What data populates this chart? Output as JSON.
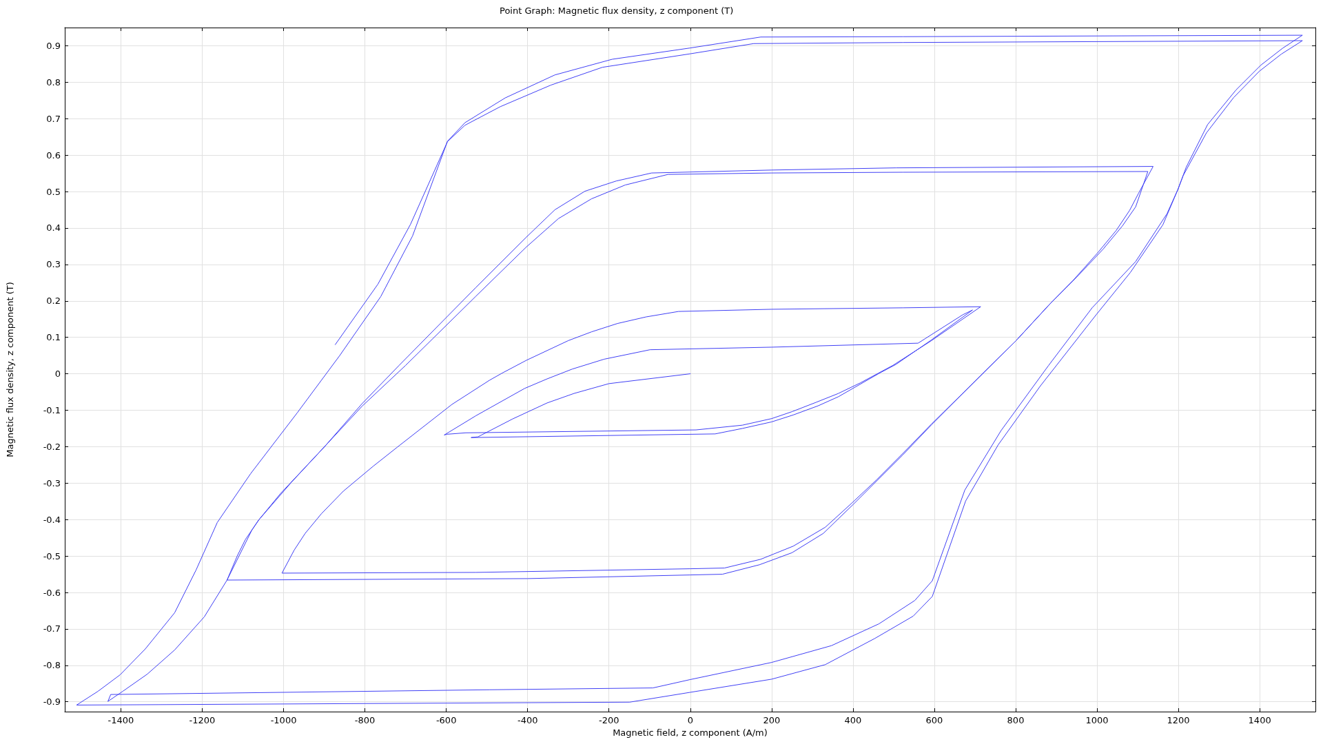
{
  "chart_data": {
    "type": "line",
    "title": "Point Graph: Magnetic flux density, z component (T)",
    "xlabel": "Magnetic field, z component (A/m)",
    "ylabel": "Magnetic flux density, z component (T)",
    "series": [
      {
        "color": "#3f3ff5",
        "x": [
          0,
          -200,
          -286,
          -352,
          -437,
          -522,
          -539,
          61,
          128,
          200,
          253,
          314,
          364,
          464,
          506,
          593,
          694,
          670,
          560,
          200,
          -99,
          -212,
          -290,
          -352,
          -407,
          -527,
          -605,
          -599,
          -552,
          14,
          128,
          200,
          250,
          310,
          364,
          418,
          498,
          593,
          714,
          523,
          200,
          -29,
          -109,
          -179,
          -243,
          -300,
          -403,
          -464,
          -494,
          -586,
          -720,
          -780,
          -853,
          -907,
          -947,
          -974,
          -1004,
          -527,
          0,
          84,
          173,
          253,
          332,
          397,
          458,
          523,
          593,
          714,
          801,
          881,
          941,
          1001,
          1047,
          1080,
          1102,
          1138,
          506,
          200,
          -95,
          -182,
          -259,
          -333,
          -403,
          -527,
          -716,
          -807,
          -900,
          -1007,
          -1061,
          -1094,
          -1114,
          -1139,
          -400,
          0,
          79,
          170,
          250,
          327,
          401,
          523,
          593,
          714,
          801,
          888,
          955,
          1015,
          1062,
          1095,
          1125,
          523,
          200,
          -55,
          -160,
          -243,
          -324,
          -403,
          -527,
          -700,
          -807,
          -981,
          -1061,
          -1078,
          -1139,
          -1195,
          -1268,
          -1335,
          -1395,
          -1432,
          -1425,
          -494,
          -92,
          0,
          200,
          347,
          464,
          552,
          595,
          675,
          764,
          881,
          988,
          1095,
          1172,
          1199,
          1219,
          1272,
          1342,
          1403,
          1456,
          1505,
          523,
          173,
          0,
          -192,
          -333,
          -455,
          -554,
          -597,
          -683,
          -761,
          -862,
          -967,
          -1081,
          -1163,
          -1215,
          -1268,
          -1340,
          -1402,
          -1456,
          -1509,
          -149,
          0,
          200,
          332,
          454,
          548,
          595,
          677,
          757,
          861,
          998,
          1082,
          1162,
          1199,
          1212,
          1269,
          1336,
          1399,
          1453,
          1505,
          523,
          156,
          0,
          -216,
          -343,
          -467,
          -554,
          -597,
          -688,
          -768,
          -873
        ],
        "values": [
          0,
          -0.027,
          -0.054,
          -0.08,
          -0.124,
          -0.173,
          -0.175,
          -0.165,
          -0.15,
          -0.132,
          -0.113,
          -0.088,
          -0.063,
          0.001,
          0.026,
          0.093,
          0.175,
          0.162,
          0.084,
          0.073,
          0.066,
          0.04,
          0.013,
          -0.014,
          -0.04,
          -0.115,
          -0.168,
          -0.166,
          -0.162,
          -0.154,
          -0.141,
          -0.123,
          -0.104,
          -0.078,
          -0.054,
          -0.025,
          0.023,
          0.091,
          0.184,
          0.181,
          0.177,
          0.171,
          0.156,
          0.138,
          0.115,
          0.091,
          0.037,
          0.001,
          -0.018,
          -0.084,
          -0.201,
          -0.254,
          -0.322,
          -0.384,
          -0.438,
          -0.484,
          -0.547,
          -0.545,
          -0.535,
          -0.533,
          -0.509,
          -0.473,
          -0.421,
          -0.355,
          -0.291,
          -0.218,
          -0.138,
          -0.005,
          0.091,
          0.188,
          0.256,
          0.331,
          0.393,
          0.448,
          0.495,
          0.569,
          0.565,
          0.559,
          0.551,
          0.529,
          0.501,
          0.45,
          0.375,
          0.237,
          0.023,
          -0.082,
          -0.201,
          -0.328,
          -0.401,
          -0.455,
          -0.5,
          -0.566,
          -0.562,
          -0.552,
          -0.55,
          -0.524,
          -0.491,
          -0.438,
          -0.358,
          -0.222,
          -0.14,
          -0.005,
          0.091,
          0.196,
          0.271,
          0.342,
          0.405,
          0.458,
          0.555,
          0.553,
          0.551,
          0.547,
          0.518,
          0.48,
          0.426,
          0.348,
          0.213,
          0.023,
          -0.089,
          -0.298,
          -0.401,
          -0.429,
          -0.566,
          -0.667,
          -0.758,
          -0.824,
          -0.871,
          -0.899,
          -0.88,
          -0.867,
          -0.862,
          -0.839,
          -0.792,
          -0.746,
          -0.686,
          -0.622,
          -0.568,
          -0.319,
          -0.156,
          0.023,
          0.181,
          0.308,
          0.439,
          0.506,
          0.566,
          0.684,
          0.779,
          0.847,
          0.893,
          0.929,
          0.925,
          0.924,
          0.894,
          0.863,
          0.82,
          0.757,
          0.689,
          0.638,
          0.378,
          0.212,
          0.05,
          -0.108,
          -0.274,
          -0.408,
          -0.538,
          -0.656,
          -0.755,
          -0.826,
          -0.871,
          -0.909,
          -0.901,
          -0.874,
          -0.838,
          -0.798,
          -0.726,
          -0.665,
          -0.611,
          -0.349,
          -0.195,
          -0.033,
          0.162,
          0.278,
          0.409,
          0.506,
          0.544,
          0.661,
          0.758,
          0.83,
          0.877,
          0.914,
          0.909,
          0.906,
          0.878,
          0.841,
          0.792,
          0.733,
          0.682,
          0.637,
          0.41,
          0.246,
          0.08
        ]
      }
    ],
    "xlim": [
      -1538,
      1537
    ],
    "ylim": [
      -0.927,
      0.95
    ],
    "xticks": [
      -1400,
      -1200,
      -1000,
      -800,
      -600,
      -400,
      -200,
      0,
      200,
      400,
      600,
      800,
      1000,
      1200,
      1400
    ],
    "yticks": [
      -0.9,
      -0.8,
      -0.7,
      -0.6,
      -0.5,
      -0.4,
      -0.3,
      -0.2,
      -0.1,
      0,
      0.1,
      0.2,
      0.3,
      0.4,
      0.5,
      0.6,
      0.7,
      0.8,
      0.9
    ],
    "grid": true
  }
}
